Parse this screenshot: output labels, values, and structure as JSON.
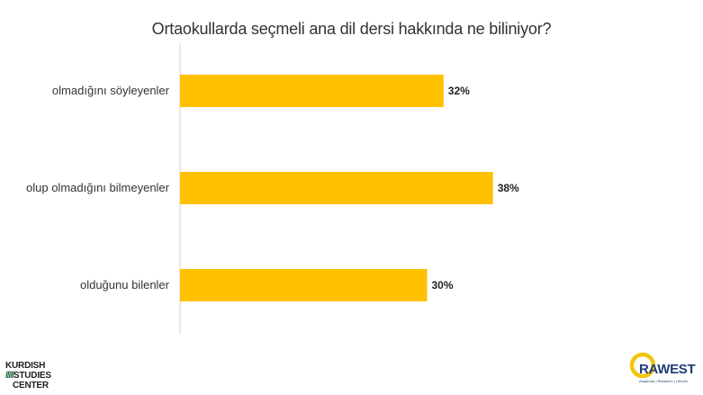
{
  "chart_data": {
    "type": "bar",
    "orientation": "horizontal",
    "title": "Ortaokullarda seçmeli ana dil dersi hakkında ne biliniyor?",
    "categories": [
      "olmadığını söyleyenler",
      "olup olmadığını bilmeyenler",
      "olduğunu bilenler"
    ],
    "values": [
      32,
      38,
      30
    ],
    "value_labels": [
      "32%",
      "38%",
      "30%"
    ],
    "unit": "%",
    "xlim": [
      0,
      100
    ],
    "bar_color": "#FFC000",
    "grid": false,
    "legend": "none"
  },
  "logos": {
    "kurdish_studies": {
      "lines": [
        "KURDISH",
        "STUDIES",
        "CENTER"
      ],
      "stripe_color": "#1D6B3A"
    },
    "rawest": {
      "name": "RAWEST",
      "tagline": "Araştırma | Research | Lêkolîn",
      "ring_color": "#F2C40C",
      "text_color": "#1F3E78"
    }
  }
}
